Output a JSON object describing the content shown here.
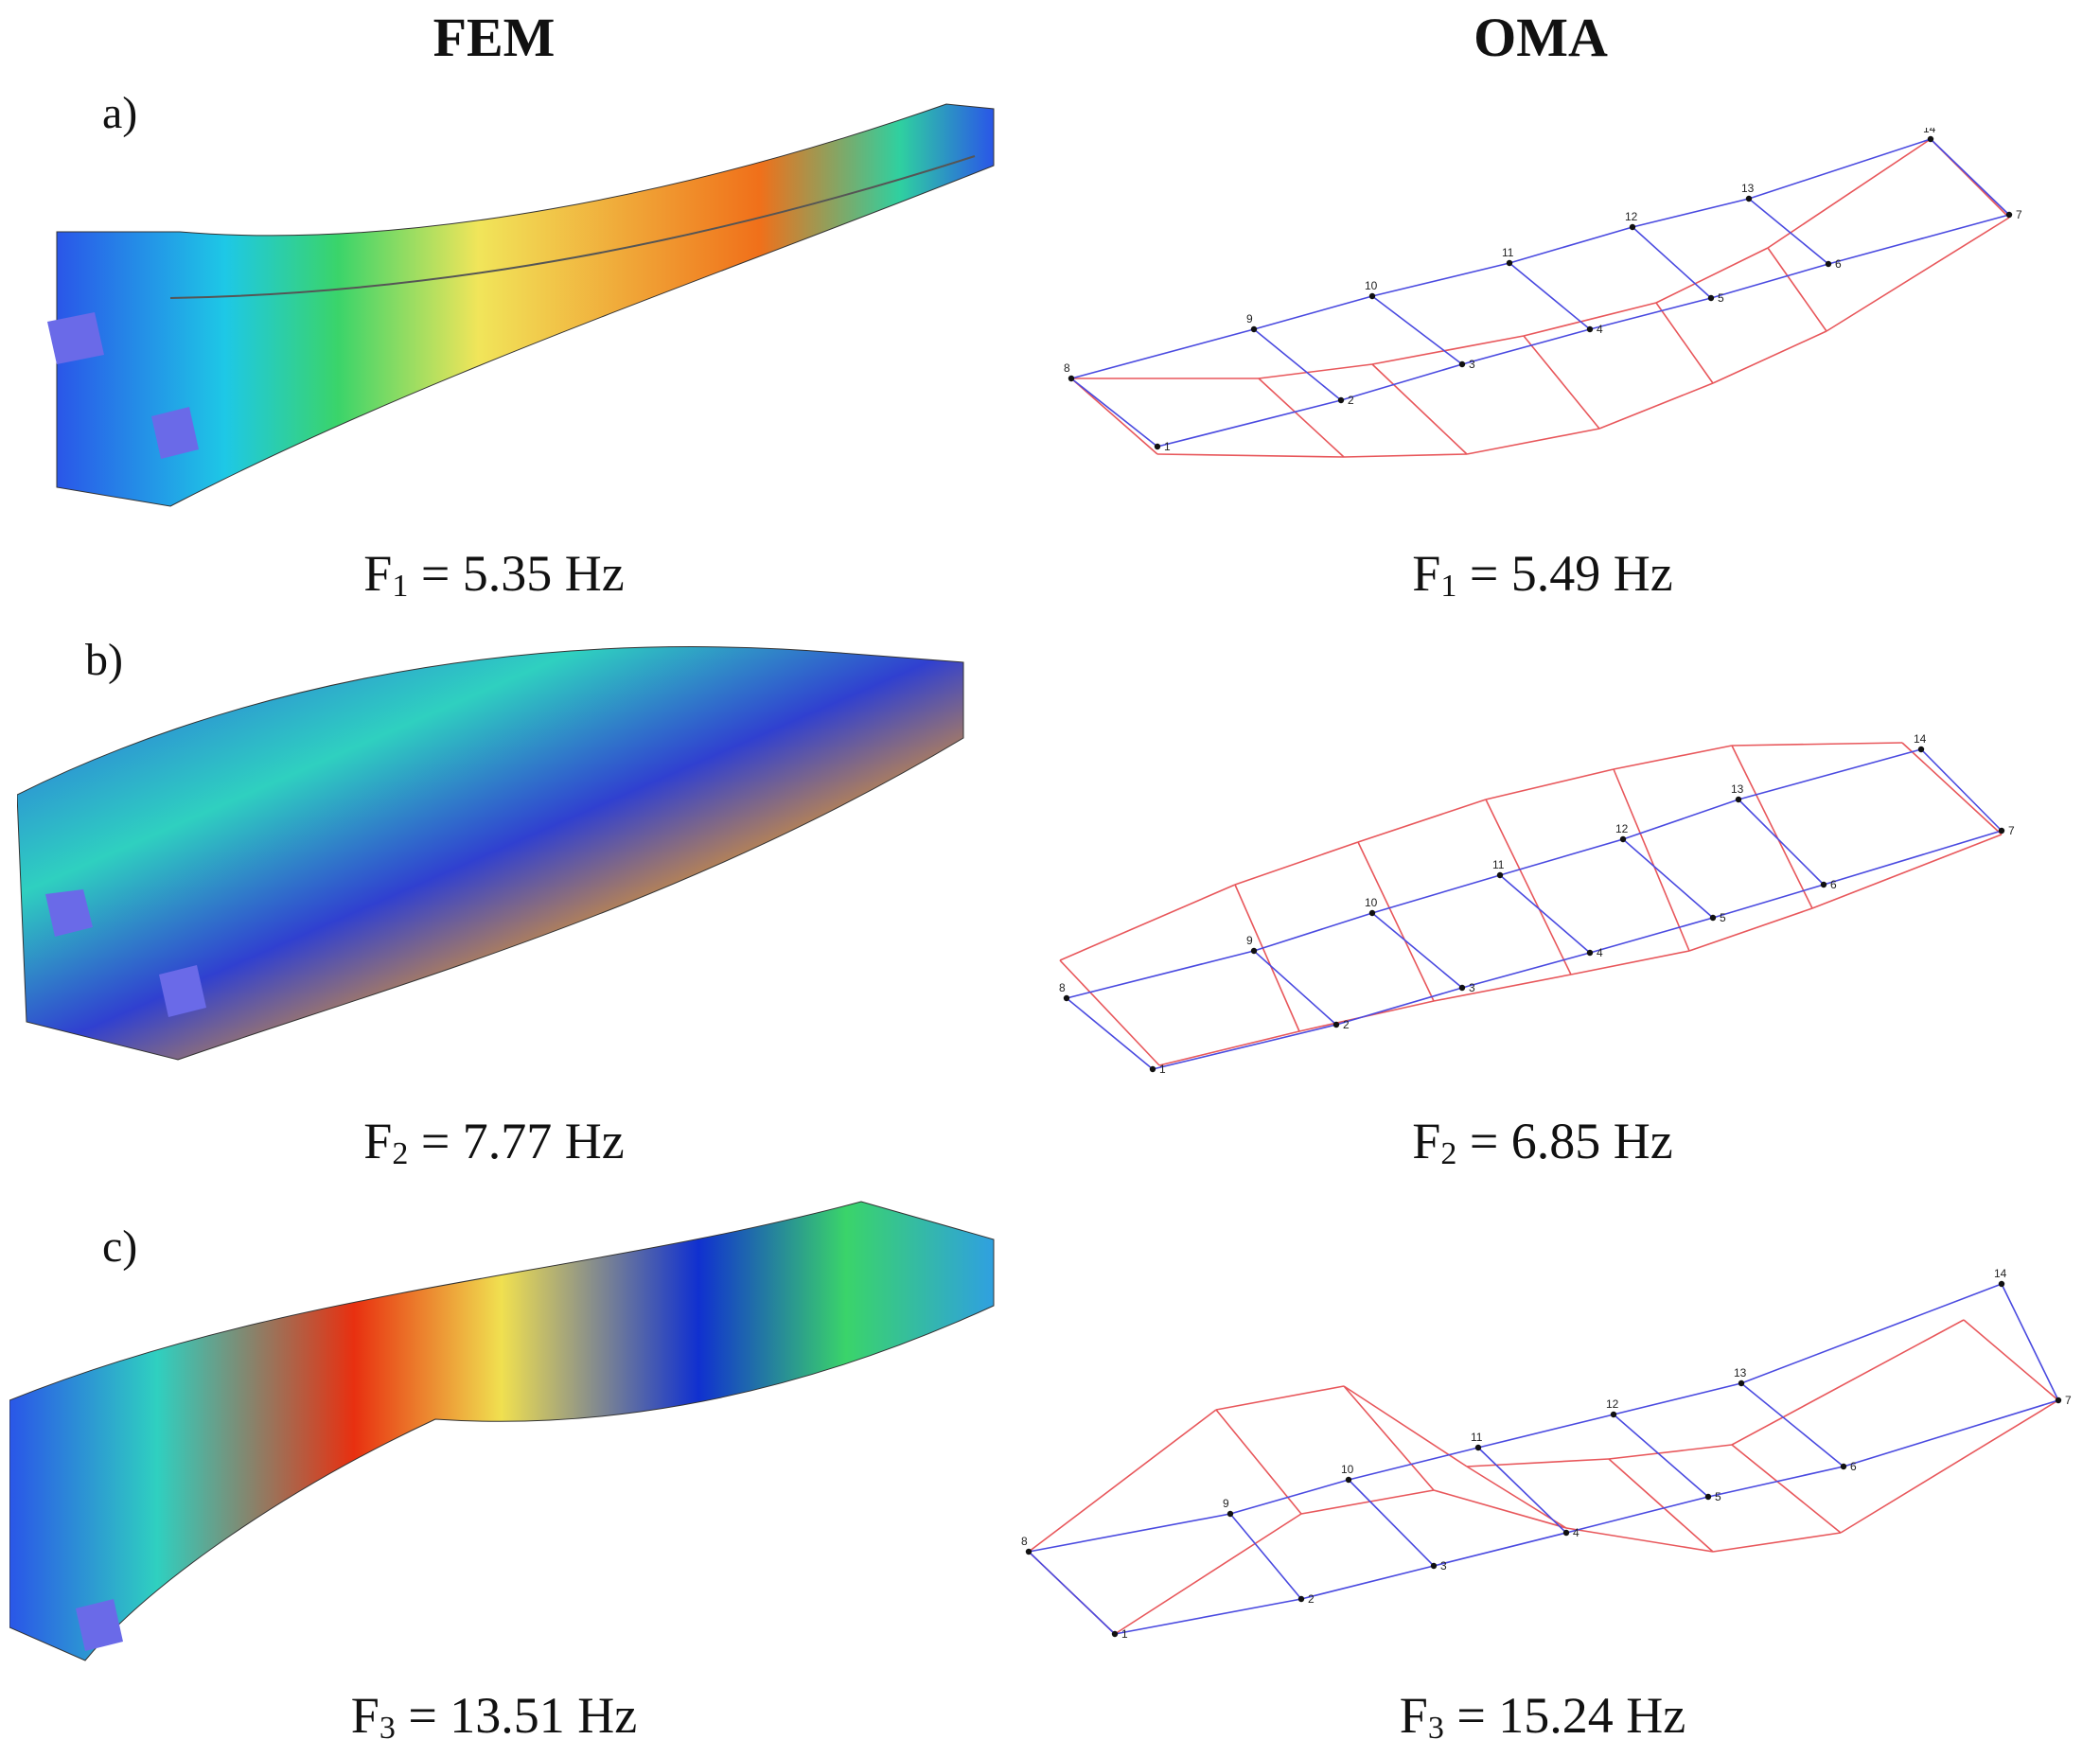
{
  "headers": {
    "fem": "FEM",
    "oma": "OMA"
  },
  "rows": [
    {
      "label": "a)",
      "fem_freq": {
        "sym": "F",
        "sub": "1",
        "rest": " = 5.35 Hz"
      },
      "oma_freq": {
        "sym": "F",
        "sub": "1",
        "rest": " = 5.49 Hz"
      }
    },
    {
      "label": "b)",
      "fem_freq": {
        "sym": "F",
        "sub": "2",
        "rest": " = 7.77 Hz"
      },
      "oma_freq": {
        "sym": "F",
        "sub": "2",
        "rest": " = 6.85 Hz"
      }
    },
    {
      "label": "c)",
      "fem_freq": {
        "sym": "F",
        "sub": "3",
        "rest": " = 13.51 Hz"
      },
      "oma_freq": {
        "sym": "F",
        "sub": "3",
        "rest": " = 15.24 Hz"
      }
    }
  ],
  "node_labels": [
    "1",
    "2",
    "3",
    "4",
    "5",
    "6",
    "7",
    "8",
    "9",
    "10",
    "11",
    "12",
    "13",
    "14"
  ],
  "colors": {
    "undeformed": "#4a4ae0",
    "deformed": "#e8575b",
    "node": "#111111"
  }
}
